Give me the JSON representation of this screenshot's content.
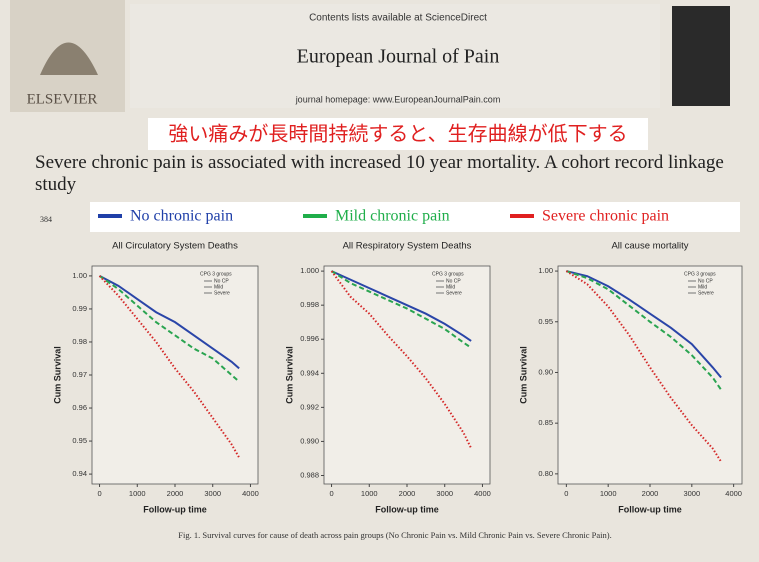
{
  "header": {
    "contents": "Contents lists available at ScienceDirect",
    "journal": "European Journal of Pain",
    "homepage": "journal homepage: www.EuropeanJournalPain.com",
    "publisher": "ELSEVIER"
  },
  "banner": "強い痛みが長時間持続すると、生存曲線が低下する",
  "article_title": "Severe chronic pain is associated with increased 10 year mortality. A cohort record linkage study",
  "page_number": "384",
  "legend": [
    {
      "label": "No chronic pain",
      "color": "#1f3fa8"
    },
    {
      "label": "Mild chronic pain",
      "color": "#1fae4a"
    },
    {
      "label": "Severe chronic pain",
      "color": "#e02020"
    }
  ],
  "chart_data": [
    {
      "type": "line",
      "title": "All Circulatory System Deaths",
      "xlabel": "Follow-up time",
      "ylabel": "Cum Survival",
      "x": [
        0,
        500,
        1000,
        1500,
        2000,
        2500,
        3000,
        3500,
        3700
      ],
      "xlim": [
        -200,
        4200
      ],
      "xticks": [
        0,
        1000,
        2000,
        3000,
        4000
      ],
      "ylim": [
        0.937,
        1.003
      ],
      "yticks": [
        {
          "value": 1,
          "label": "1.00"
        },
        0.99,
        0.98,
        0.97,
        0.96,
        0.95,
        0.94
      ],
      "legend_title": "CPG 3 groups",
      "series": [
        {
          "name": "No CP",
          "color": "#2a45a8",
          "line_style": "solid",
          "values": [
            1.0,
            0.997,
            0.993,
            0.989,
            0.986,
            0.982,
            0.978,
            0.974,
            0.972
          ]
        },
        {
          "name": "Mild",
          "color": "#2aa450",
          "line_style": "dashed",
          "values": [
            1.0,
            0.996,
            0.991,
            0.986,
            0.982,
            0.978,
            0.975,
            0.97,
            0.968
          ]
        },
        {
          "name": "Severe",
          "color": "#d42828",
          "line_style": "dotted",
          "values": [
            1.0,
            0.994,
            0.987,
            0.98,
            0.972,
            0.965,
            0.957,
            0.949,
            0.945
          ]
        }
      ]
    },
    {
      "type": "line",
      "title": "All Respiratory System Deaths",
      "xlabel": "Follow-up time",
      "ylabel": "Cum Survival",
      "x": [
        0,
        500,
        1000,
        1500,
        2000,
        2500,
        3000,
        3500,
        3700
      ],
      "xlim": [
        -200,
        4200
      ],
      "xticks": [
        0,
        1000,
        2000,
        3000,
        4000
      ],
      "ylim": [
        0.9875,
        1.0003
      ],
      "yticks": [
        {
          "value": 1,
          "label": "1.000"
        },
        0.998,
        0.996,
        0.994,
        0.992,
        {
          "value": 0.99,
          "label": "0.990"
        },
        0.988
      ],
      "legend_title": "CPG 3 groups",
      "series": [
        {
          "name": "No CP",
          "color": "#2a45a8",
          "line_style": "solid",
          "values": [
            1.0,
            0.9995,
            0.999,
            0.9985,
            0.998,
            0.9975,
            0.9969,
            0.9962,
            0.9959
          ]
        },
        {
          "name": "Mild",
          "color": "#2aa450",
          "line_style": "dashed",
          "values": [
            1.0,
            0.9993,
            0.9988,
            0.9983,
            0.9978,
            0.9972,
            0.9966,
            0.9958,
            0.9955
          ]
        },
        {
          "name": "Severe",
          "color": "#d42828",
          "line_style": "dotted",
          "values": [
            1.0,
            0.9985,
            0.9975,
            0.9962,
            0.995,
            0.9937,
            0.9922,
            0.9905,
            0.9896
          ]
        }
      ]
    },
    {
      "type": "line",
      "title": "All cause mortality",
      "xlabel": "Follow-up time",
      "ylabel": "Cum Survival",
      "x": [
        0,
        500,
        1000,
        1500,
        2000,
        2500,
        3000,
        3500,
        3700
      ],
      "xlim": [
        -200,
        4200
      ],
      "xticks": [
        0,
        1000,
        2000,
        3000,
        4000
      ],
      "ylim": [
        0.79,
        1.005
      ],
      "yticks": [
        {
          "value": 1,
          "label": "1.00"
        },
        0.95,
        {
          "value": 0.9,
          "label": "0.90"
        },
        0.85,
        {
          "value": 0.8,
          "label": "0.80"
        }
      ],
      "legend_title": "CPG 3 groups",
      "series": [
        {
          "name": "No CP",
          "color": "#2a45a8",
          "line_style": "solid",
          "values": [
            1.0,
            0.995,
            0.985,
            0.972,
            0.958,
            0.944,
            0.928,
            0.905,
            0.895
          ]
        },
        {
          "name": "Mild",
          "color": "#2aa450",
          "line_style": "dashed",
          "values": [
            1.0,
            0.993,
            0.982,
            0.966,
            0.95,
            0.935,
            0.917,
            0.895,
            0.883
          ]
        },
        {
          "name": "Severe",
          "color": "#d42828",
          "line_style": "dotted",
          "values": [
            1.0,
            0.987,
            0.965,
            0.937,
            0.905,
            0.875,
            0.848,
            0.825,
            0.812
          ]
        }
      ]
    }
  ],
  "caption": "Fig. 1. Survival curves for cause of death across pain groups (No Chronic Pain vs. Mild Chronic Pain vs. Severe Chronic Pain)."
}
